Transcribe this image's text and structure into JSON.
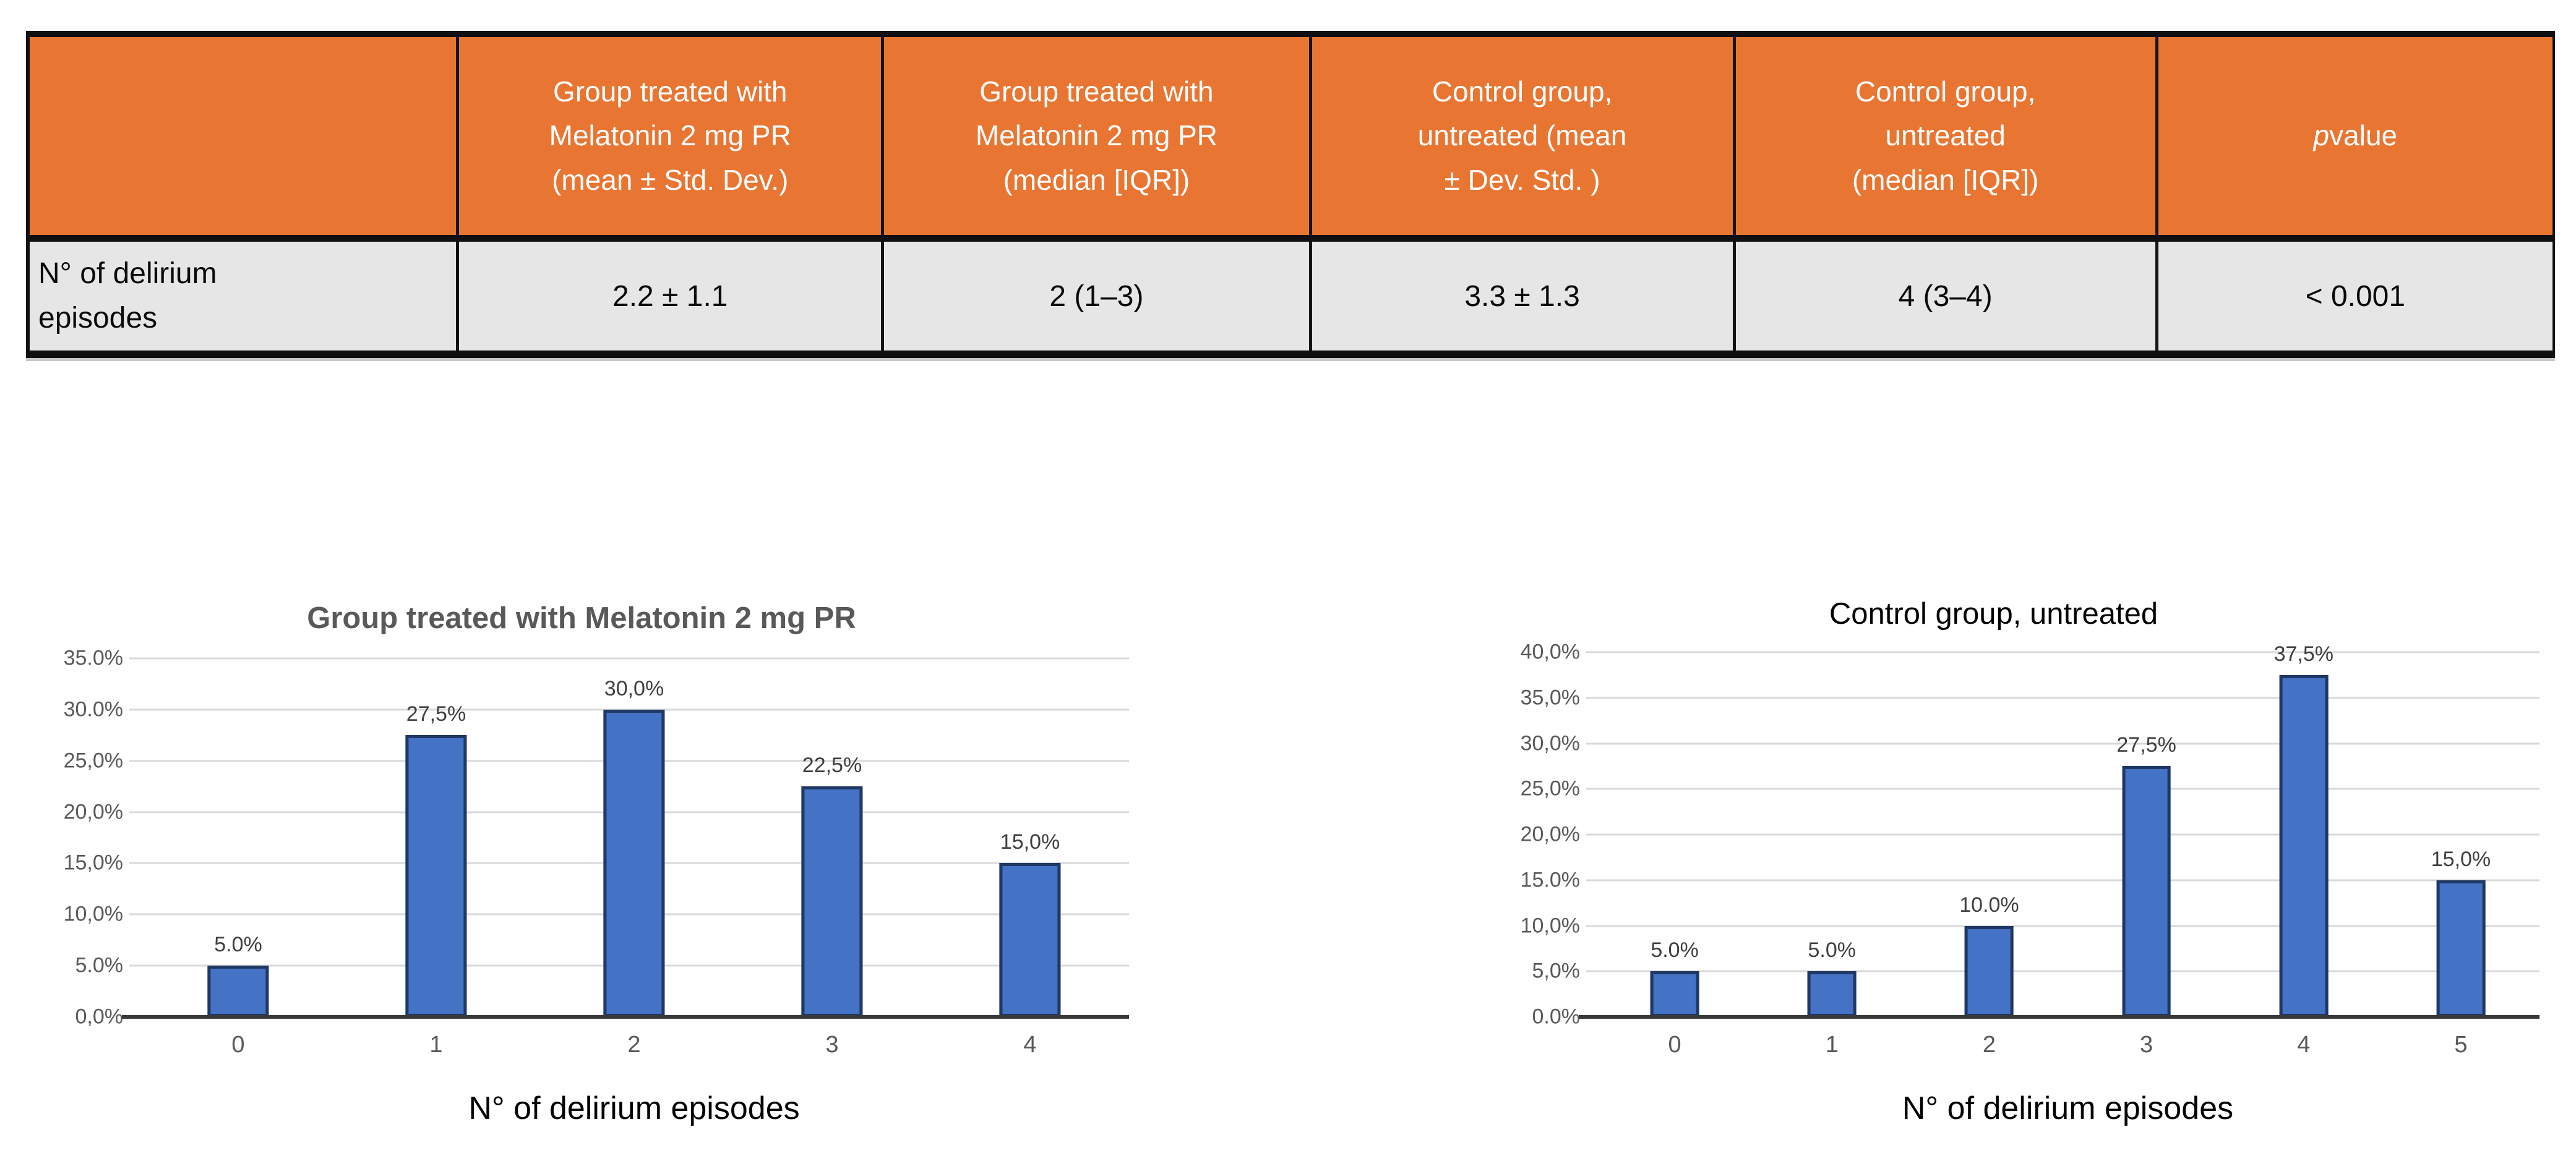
{
  "table": {
    "header_bg": "#E97532",
    "row_bg": "#E7E6E6",
    "columns": [
      {
        "label": ""
      },
      {
        "label": "Group treated with\nMelatonin 2 mg PR\n(mean ± Std. Dev.)"
      },
      {
        "label": "Group treated with\nMelatonin 2 mg PR\n(median [IQR])"
      },
      {
        "label": "Control group,\nuntreated (mean\n± Dev. Std. )"
      },
      {
        "label": "Control group,\nuntreated\n(median [IQR])"
      },
      {
        "p_italic": "p",
        "p_rest": " value"
      }
    ],
    "row": {
      "label": "N° of delirium\nepisodes",
      "values": [
        "2.2 ± 1.1",
        "2 (1–3)",
        "3.3 ± 1.3",
        "4 (3–4)",
        "< 0.001"
      ]
    }
  },
  "chart_data": [
    {
      "type": "bar",
      "title": "Group treated with Melatonin 2 mg PR",
      "title_style": {
        "bold": true,
        "color": "#595959"
      },
      "categories": [
        "0",
        "1",
        "2",
        "3",
        "4"
      ],
      "values": [
        5.0,
        27.5,
        30.0,
        22.5,
        15.0
      ],
      "bar_labels": [
        "5.0%",
        "27,5%",
        "30,0%",
        "22,5%",
        "15,0%"
      ],
      "ytick_labels": [
        "35.0%",
        "30.0%",
        "25,0%",
        "20,0%",
        "15,0%",
        "10,0%",
        "5.0%",
        "0,0%"
      ],
      "ylim": [
        0,
        35
      ],
      "ytick_step": 5,
      "xlabel": "N° of delirium episodes",
      "bar_color": "#4472C4",
      "bar_border": "#1F3864",
      "grid": true,
      "legend": "none"
    },
    {
      "type": "bar",
      "title": "Control group, untreated",
      "title_style": {
        "bold": false,
        "color": "#000000"
      },
      "categories": [
        "0",
        "1",
        "2",
        "3",
        "4",
        "5"
      ],
      "values": [
        5.0,
        5.0,
        10.0,
        27.5,
        37.5,
        15.0
      ],
      "bar_labels": [
        "5.0%",
        "5.0%",
        "10.0%",
        "27,5%",
        "37,5%",
        "15,0%"
      ],
      "ytick_labels": [
        "40,0%",
        "35,0%",
        "30,0%",
        "25,0%",
        "20,0%",
        "15.0%",
        "10,0%",
        "5,0%",
        "0.0%"
      ],
      "ylim": [
        0,
        40
      ],
      "ytick_step": 5,
      "xlabel": "N° of delirium episodes",
      "bar_color": "#4472C4",
      "bar_border": "#1F3864",
      "grid": true,
      "legend": "none"
    }
  ]
}
